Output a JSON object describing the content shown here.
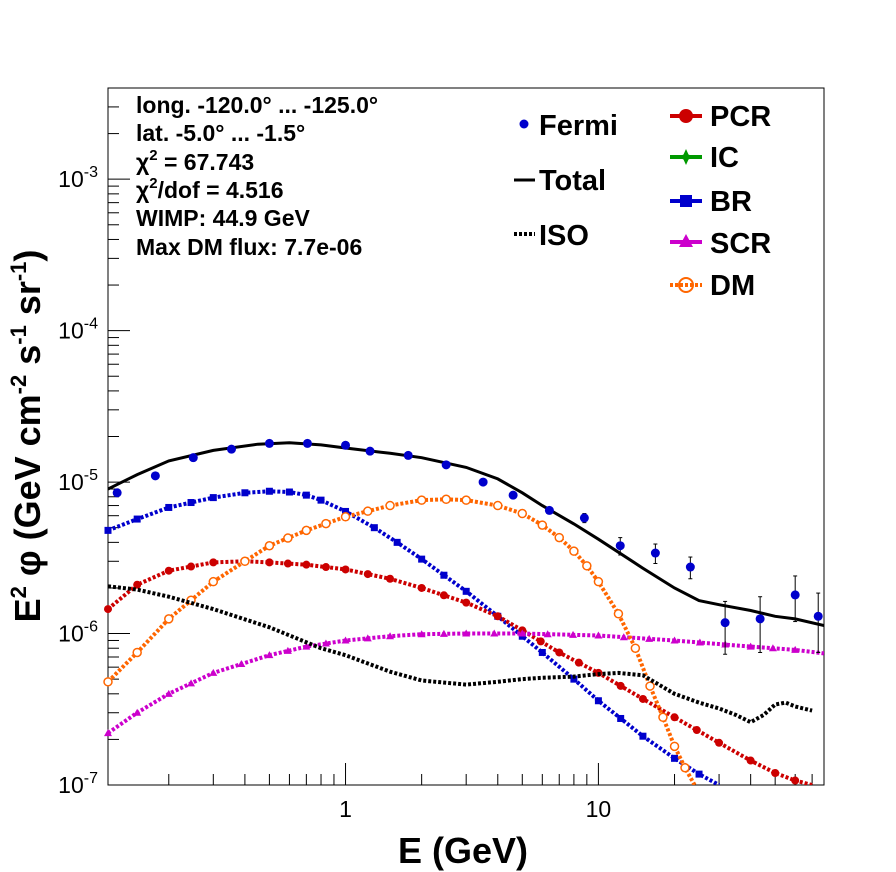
{
  "chart_data": {
    "type": "line",
    "info": {
      "longitude": "long. -120.0° ... -125.0°",
      "latitude": "lat. -5.0° ... -1.5°",
      "chi2_prefix": "χ",
      "chi2_value": " = 67.743",
      "chi2dof_prefix": "χ",
      "chi2dof_value": "/dof = 4.516",
      "wimp": "WIMP: 44.9 GeV",
      "max_dm_flux": "Max DM flux: 7.7e-06"
    },
    "xlabel": "E (GeV)",
    "ylabel": {
      "e": "E",
      "phi": " φ (GeV cm",
      "sr_part": " s",
      "sr": " sr",
      "close": ")",
      "sup2": "2",
      "supm2": "-2",
      "supm1": "-1"
    },
    "xscale": "log",
    "yscale": "log",
    "xlim": [
      0.115,
      78
    ],
    "ylim": [
      1e-07,
      0.004
    ],
    "x_tick_labels": [
      {
        "value": 1,
        "label": "1"
      },
      {
        "value": 10,
        "label": "10"
      }
    ],
    "y_tick_labels": [
      {
        "value": 1e-07,
        "base": "10",
        "exp": "-7"
      },
      {
        "value": 1e-06,
        "base": "10",
        "exp": "-6"
      },
      {
        "value": 1e-05,
        "base": "10",
        "exp": "-5"
      },
      {
        "value": 0.0001,
        "base": "10",
        "exp": "-4"
      },
      {
        "value": 0.001,
        "base": "10",
        "exp": "-3"
      }
    ],
    "legend_left": [
      {
        "name": "Fermi",
        "style": "point",
        "color": "#0000cc"
      },
      {
        "name": "Total",
        "style": "line",
        "color": "#000000"
      },
      {
        "name": "ISO",
        "style": "dots",
        "color": "#000000"
      }
    ],
    "legend_right": [
      {
        "name": "PCR",
        "style": "circle",
        "color": "#cc0000"
      },
      {
        "name": "IC",
        "style": "star",
        "color": "#009900"
      },
      {
        "name": "BR",
        "style": "square",
        "color": "#0000cc"
      },
      {
        "name": "SCR",
        "style": "triangle",
        "color": "#cc00cc"
      },
      {
        "name": "DM",
        "style": "open-circle",
        "color": "#ff6600"
      }
    ],
    "fermi": [
      {
        "x": 0.125,
        "y": 8.5e-06,
        "err": 0
      },
      {
        "x": 0.177,
        "y": 1.1e-05,
        "err": 0
      },
      {
        "x": 0.25,
        "y": 1.45e-05,
        "err": 0
      },
      {
        "x": 0.354,
        "y": 1.65e-05,
        "err": 0
      },
      {
        "x": 0.5,
        "y": 1.8e-05,
        "err": 0
      },
      {
        "x": 0.707,
        "y": 1.8e-05,
        "err": 0
      },
      {
        "x": 1.0,
        "y": 1.75e-05,
        "err": 0
      },
      {
        "x": 1.25,
        "y": 1.6e-05,
        "err": 0
      },
      {
        "x": 1.77,
        "y": 1.5e-05,
        "err": 0
      },
      {
        "x": 2.5,
        "y": 1.3e-05,
        "err": 0
      },
      {
        "x": 3.5,
        "y": 1e-05,
        "err": 0
      },
      {
        "x": 4.6,
        "y": 8.2e-06,
        "err": 0
      },
      {
        "x": 6.4,
        "y": 6.5e-06,
        "err": 0
      },
      {
        "x": 8.8,
        "y": 5.8e-06,
        "err": 4e-07
      },
      {
        "x": 12.2,
        "y": 3.8e-06,
        "err": 5e-07
      },
      {
        "x": 16.8,
        "y": 3.4e-06,
        "err": 5e-07
      },
      {
        "x": 23.1,
        "y": 2.75e-06,
        "err": 4.5e-07
      },
      {
        "x": 31.7,
        "y": 1.18e-06,
        "err": 4.5e-07
      },
      {
        "x": 43.6,
        "y": 1.25e-06,
        "err": 5e-07
      },
      {
        "x": 60.0,
        "y": 1.8e-06,
        "err": 6e-07
      },
      {
        "x": 74.0,
        "y": 1.3e-06,
        "err": 5.5e-07
      }
    ],
    "series": [
      {
        "name": "Total",
        "color": "#000000",
        "x": [
          0.115,
          0.15,
          0.2,
          0.3,
          0.45,
          0.6,
          0.8,
          1.0,
          1.5,
          2.0,
          3.0,
          4.0,
          5.0,
          6.0,
          8.0,
          10.0,
          15.0,
          20.0,
          25.0,
          30.0,
          40.0,
          50.0,
          60.0,
          78.0
        ],
        "y": [
          9e-06,
          1.12e-05,
          1.38e-05,
          1.62e-05,
          1.78e-05,
          1.82e-05,
          1.76e-05,
          1.68e-05,
          1.55e-05,
          1.45e-05,
          1.25e-05,
          1.05e-05,
          8.5e-06,
          7e-06,
          5.3e-06,
          4.2e-06,
          2.7e-06,
          2e-06,
          1.65e-06,
          1.55e-06,
          1.42e-06,
          1.3e-06,
          1.25e-06,
          1.13e-06
        ]
      },
      {
        "name": "BR",
        "color": "#0000cc",
        "x": [
          0.115,
          0.15,
          0.2,
          0.3,
          0.4,
          0.5,
          0.6,
          0.7,
          0.8,
          1.0,
          1.3,
          1.6,
          2.0,
          3.0,
          4.0,
          5.0,
          6.0,
          8.0,
          10.0,
          15.0,
          20.0,
          25.0,
          30.0
        ],
        "y": [
          4.8e-06,
          5.7e-06,
          6.8e-06,
          7.9e-06,
          8.5e-06,
          8.7e-06,
          8.6e-06,
          8.2e-06,
          7.6e-06,
          6.4e-06,
          5e-06,
          4e-06,
          3.1e-06,
          1.9e-06,
          1.3e-06,
          9.6e-07,
          7.5e-07,
          5e-07,
          3.6e-07,
          2.1e-07,
          1.5e-07,
          1.18e-07,
          1e-07
        ]
      },
      {
        "name": "PCR",
        "color": "#cc0000",
        "x": [
          0.115,
          0.15,
          0.2,
          0.3,
          0.4,
          0.5,
          0.7,
          1.0,
          1.5,
          2.0,
          3.0,
          4.0,
          5.0,
          7.0,
          10.0,
          15.0,
          20.0,
          30.0,
          40.0,
          50.0,
          60.0,
          70.0
        ],
        "y": [
          1.45e-06,
          2.1e-06,
          2.6e-06,
          2.95e-06,
          3e-06,
          2.95e-06,
          2.85e-06,
          2.65e-06,
          2.3e-06,
          2e-06,
          1.6e-06,
          1.3e-06,
          1.05e-06,
          7.5e-07,
          5.5e-07,
          3.7e-07,
          2.8e-07,
          1.9e-07,
          1.45e-07,
          1.2e-07,
          1.07e-07,
          1e-07
        ]
      },
      {
        "name": "SCR",
        "color": "#cc00cc",
        "x": [
          0.115,
          0.15,
          0.2,
          0.3,
          0.5,
          0.7,
          1.0,
          1.5,
          2.0,
          3.0,
          5.0,
          10.0,
          20.0,
          40.0,
          60.0,
          78.0
        ],
        "y": [
          2.2e-07,
          3e-07,
          4e-07,
          5.5e-07,
          7.2e-07,
          8.2e-07,
          9e-07,
          9.6e-07,
          9.9e-07,
          1e-06,
          1e-06,
          9.7e-07,
          9e-07,
          8.2e-07,
          7.8e-07,
          7.4e-07
        ]
      },
      {
        "name": "DM",
        "color": "#ff6600",
        "x": [
          0.115,
          0.15,
          0.2,
          0.3,
          0.4,
          0.5,
          0.7,
          1.0,
          1.5,
          2.0,
          2.5,
          3.0,
          4.0,
          5.0,
          6.0,
          7.0,
          8.0,
          9.0,
          10.0,
          12.0,
          14.0,
          16.0,
          18.0,
          20.0,
          22.0,
          24.0
        ],
        "y": [
          4.8e-07,
          7.5e-07,
          1.25e-06,
          2.2e-06,
          3e-06,
          3.8e-06,
          4.8e-06,
          5.9e-06,
          7e-06,
          7.6e-06,
          7.7e-06,
          7.6e-06,
          7e-06,
          6.2e-06,
          5.2e-06,
          4.3e-06,
          3.5e-06,
          2.8e-06,
          2.2e-06,
          1.35e-06,
          8e-07,
          4.5e-07,
          2.8e-07,
          1.8e-07,
          1.3e-07,
          1e-07
        ]
      },
      {
        "name": "ISO",
        "color": "#000000",
        "x": [
          0.115,
          0.15,
          0.2,
          0.3,
          0.5,
          0.8,
          1.0,
          1.5,
          2.0,
          3.0,
          4.0,
          5.0,
          6.0,
          8.0,
          10.0,
          12.0,
          15.0,
          20.0,
          25.0,
          30.0,
          35.0,
          40.0,
          45.0,
          50.0,
          55.0,
          60.0,
          70.0
        ],
        "y": [
          2.05e-06,
          1.95e-06,
          1.75e-06,
          1.45e-06,
          1.1e-06,
          8e-07,
          7.2e-07,
          5.6e-07,
          4.9e-07,
          4.6e-07,
          4.8e-07,
          5e-07,
          5.1e-07,
          5.2e-07,
          5.4e-07,
          5.5e-07,
          5.3e-07,
          4e-07,
          3.5e-07,
          3.2e-07,
          2.9e-07,
          2.6e-07,
          2.9e-07,
          3.4e-07,
          3.5e-07,
          3.3e-07,
          3.1e-07
        ]
      }
    ]
  }
}
